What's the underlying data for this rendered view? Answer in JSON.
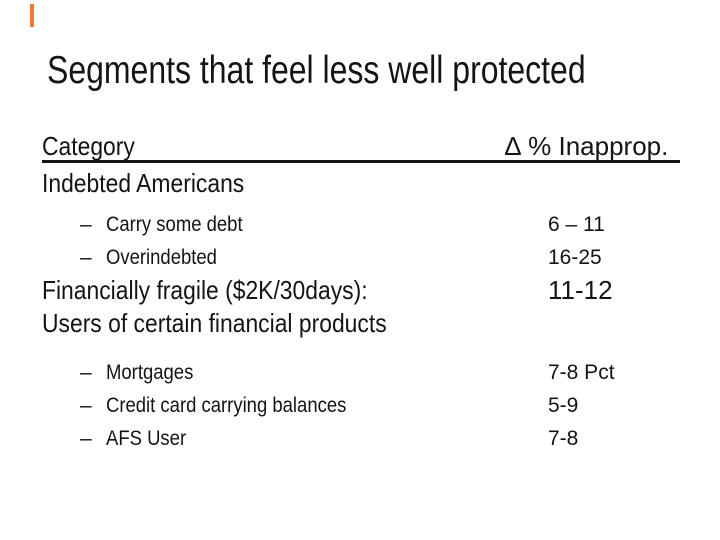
{
  "slide": {
    "title": "Segments that feel less well protected",
    "accent_color": "#ED7D31"
  },
  "table": {
    "header": {
      "category_label": "Category",
      "value_label": "∆ % Inapprop."
    },
    "bullet_marker": "–",
    "rows": [
      {
        "label": "Indebted Americans",
        "value": "",
        "indent": false
      },
      {
        "label": "Carry some debt",
        "value": "6 – 11",
        "indent": true
      },
      {
        "label": "Overindebted",
        "value": "16-25",
        "indent": true
      },
      {
        "label": "Financially fragile ($2K/30days):",
        "value": "11-12",
        "indent": false
      },
      {
        "label": "Users of certain financial products",
        "value": "",
        "indent": false
      },
      {
        "label": "Mortgages",
        "value": "7-8 Pct",
        "indent": true
      },
      {
        "label": "Credit card carrying balances",
        "value": "5-9",
        "indent": true
      },
      {
        "label": "AFS User",
        "value": "7-8",
        "indent": true
      }
    ]
  }
}
